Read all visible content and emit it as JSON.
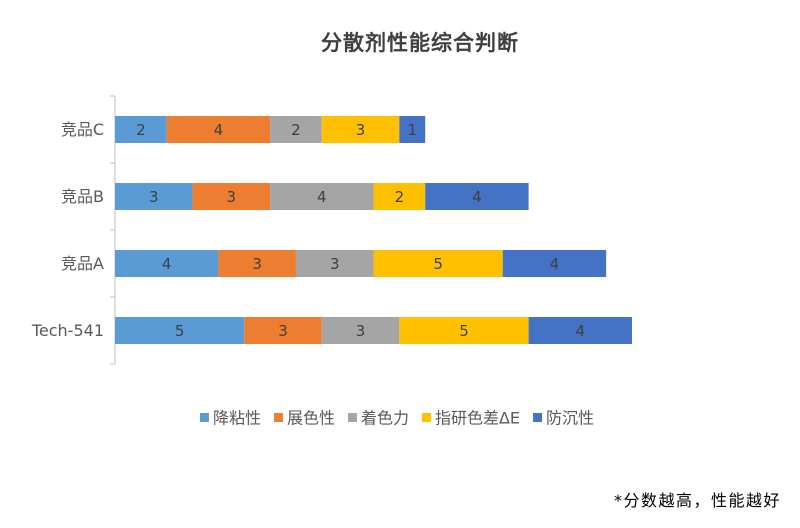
{
  "chart_data": {
    "type": "bar",
    "orientation": "horizontal",
    "stacked": true,
    "title": "分散剂性能综合判断",
    "categories": [
      "竞品C",
      "竞品B",
      "竞品A",
      "Tech-541"
    ],
    "series": [
      {
        "name": "降粘性",
        "color": "#5B9BD5",
        "values": [
          2,
          3,
          4,
          5
        ]
      },
      {
        "name": "展色性",
        "color": "#ED7D31",
        "values": [
          4,
          3,
          3,
          3
        ]
      },
      {
        "name": "着色力",
        "color": "#A5A5A5",
        "values": [
          2,
          4,
          3,
          3
        ]
      },
      {
        "name": "指研色差ΔE",
        "color": "#FFC000",
        "values": [
          3,
          2,
          5,
          5
        ]
      },
      {
        "name": "防沉性",
        "color": "#4472C4",
        "values": [
          1,
          4,
          4,
          4
        ]
      }
    ],
    "data_labels": true,
    "legend_position": "bottom",
    "grid": false
  },
  "footnote": "*分数越高，性能越好"
}
